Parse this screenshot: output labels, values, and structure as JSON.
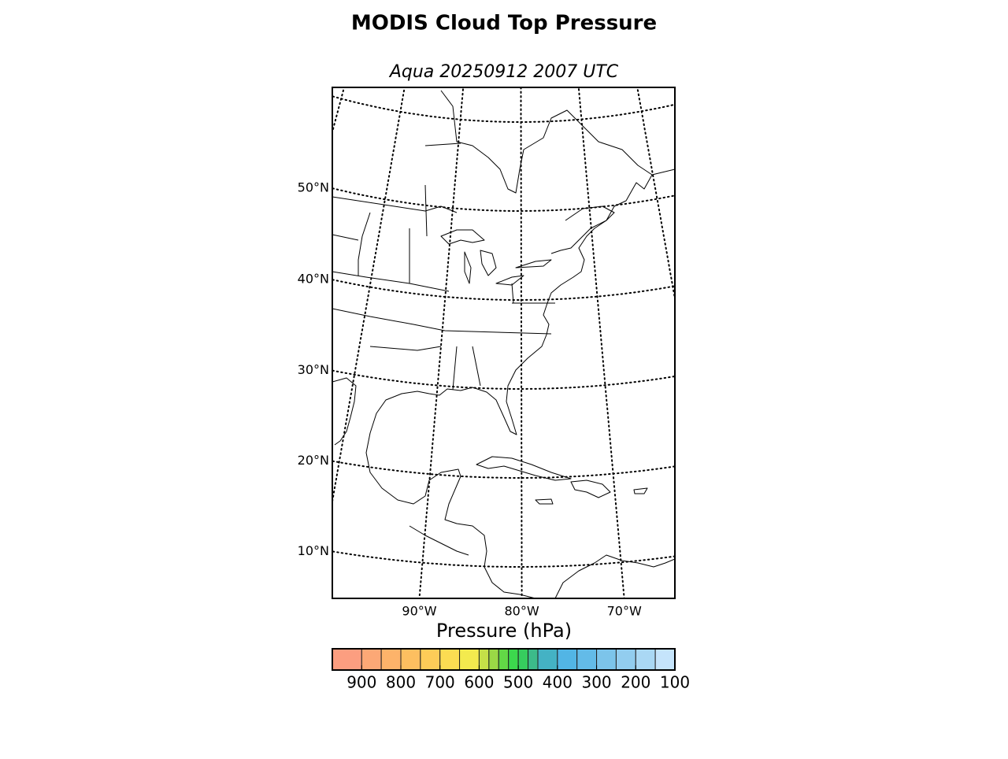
{
  "title": "MODIS Cloud Top Pressure",
  "subtitle": "Aqua 20250912 2007 UTC",
  "map": {
    "lat_ticks": [
      {
        "value": 10,
        "label": "10°N"
      },
      {
        "value": 20,
        "label": "20°N"
      },
      {
        "value": 30,
        "label": "30°N"
      },
      {
        "value": 40,
        "label": "40°N"
      },
      {
        "value": 50,
        "label": "50°N"
      }
    ],
    "lon_ticks": [
      {
        "value": -90,
        "label": "90°W"
      },
      {
        "value": -80,
        "label": "80°W"
      },
      {
        "value": -70,
        "label": "70°W"
      }
    ]
  },
  "colorbar": {
    "label": "Pressure (hPa)",
    "xlim": [
      975,
      100
    ],
    "ticks": [
      900,
      800,
      700,
      600,
      500,
      400,
      300,
      200,
      100
    ],
    "boundaries": [
      975,
      900,
      850,
      800,
      750,
      700,
      650,
      600,
      575,
      550,
      525,
      500,
      475,
      450,
      400,
      350,
      300,
      250,
      200,
      150,
      100
    ],
    "colors": [
      "#fc9e80",
      "#fca876",
      "#fdb36a",
      "#fdbf60",
      "#fdcc58",
      "#fbdc52",
      "#f3ea4e",
      "#c5e048",
      "#9ad846",
      "#62d846",
      "#3cd84d",
      "#36cd5e",
      "#3cbb8a",
      "#44b2c4",
      "#52b5e5",
      "#63bbe8",
      "#7cc4ea",
      "#92cdef",
      "#aad8f4",
      "#c5e4fb"
    ]
  }
}
